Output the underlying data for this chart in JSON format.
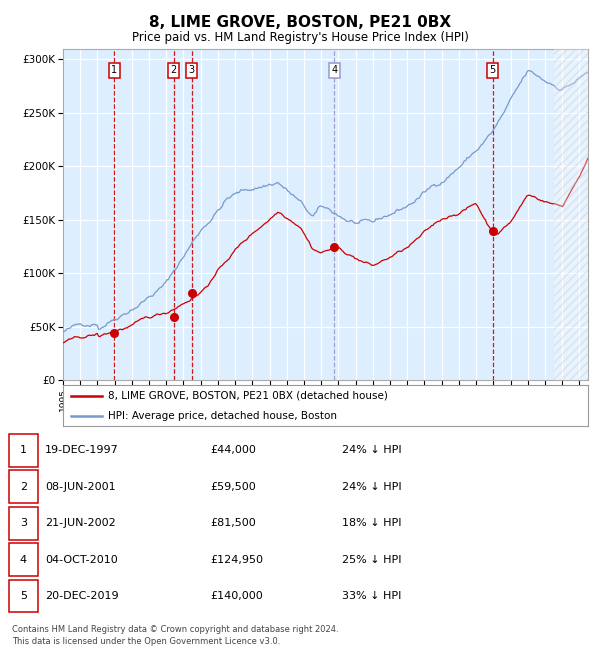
{
  "title": "8, LIME GROVE, BOSTON, PE21 0BX",
  "subtitle": "Price paid vs. HM Land Registry's House Price Index (HPI)",
  "legend_entries": [
    "8, LIME GROVE, BOSTON, PE21 0BX (detached house)",
    "HPI: Average price, detached house, Boston"
  ],
  "table_rows": [
    {
      "num": 1,
      "date": "19-DEC-1997",
      "price": "£44,000",
      "hpi": "24% ↓ HPI"
    },
    {
      "num": 2,
      "date": "08-JUN-2001",
      "price": "£59,500",
      "hpi": "24% ↓ HPI"
    },
    {
      "num": 3,
      "date": "21-JUN-2002",
      "price": "£81,500",
      "hpi": "18% ↓ HPI"
    },
    {
      "num": 4,
      "date": "04-OCT-2010",
      "price": "£124,950",
      "hpi": "25% ↓ HPI"
    },
    {
      "num": 5,
      "date": "20-DEC-2019",
      "price": "£140,000",
      "hpi": "33% ↓ HPI"
    }
  ],
  "footnote": "Contains HM Land Registry data © Crown copyright and database right 2024.\nThis data is licensed under the Open Government Licence v3.0.",
  "sale_dates_decimal": [
    1997.967,
    2001.44,
    2002.474,
    2010.756,
    2019.967
  ],
  "sale_prices": [
    44000,
    59500,
    81500,
    124950,
    140000
  ],
  "hpi_color": "#7799cc",
  "price_color": "#cc0000",
  "bg_color": "#ddeeff",
  "grid_color": "#ffffff",
  "ylim": [
    0,
    310000
  ],
  "xlim_start": 1995.0,
  "xlim_end": 2025.5,
  "yticks": [
    0,
    50000,
    100000,
    150000,
    200000,
    250000,
    300000
  ],
  "ytick_labels": [
    "£0",
    "£50K",
    "£100K",
    "£150K",
    "£200K",
    "£250K",
    "£300K"
  ],
  "hatch_start": 2023.5
}
